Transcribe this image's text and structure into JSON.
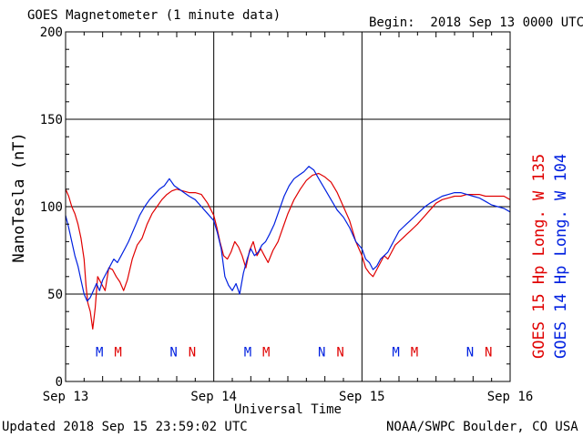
{
  "header": {
    "title": "GOES Magnetometer (1 minute data)",
    "begin": "Begin:  2018 Sep 13 0000 UTC"
  },
  "footer": {
    "updated": "Updated 2018 Sep 15 23:59:02 UTC",
    "credit": "NOAA/SWPC Boulder, CO USA"
  },
  "colors": {
    "goes15": "#e00000",
    "goes14": "#0020e0",
    "grid": "#000000"
  },
  "chart_data": {
    "type": "line",
    "title": "GOES Magnetometer (1 minute data)",
    "xlabel": "Universal Time",
    "ylabel": "NanoTesla (nT)",
    "ylim": [
      0,
      200
    ],
    "xlim": [
      0,
      72
    ],
    "x_unit": "hours since 2018 Sep 13 0000 UTC",
    "y_ticks": [
      0,
      50,
      100,
      150,
      200
    ],
    "x_ticks": [
      {
        "x": 0,
        "label": "Sep 13"
      },
      {
        "x": 24,
        "label": "Sep 14"
      },
      {
        "x": 48,
        "label": "Sep 15"
      },
      {
        "x": 72,
        "label": "Sep 16"
      }
    ],
    "grid": true,
    "legend_position": "right-vertical",
    "series": [
      {
        "name": "GOES 15 Hp  Long. W 135",
        "color": "#e00000",
        "x": [
          0,
          0.5,
          1,
          1.5,
          2,
          2.5,
          3,
          3.3,
          3.6,
          4,
          4.4,
          4.8,
          5.2,
          5.8,
          6.4,
          7,
          7.6,
          8.2,
          8.8,
          9.4,
          10,
          10.8,
          11.6,
          12.4,
          13.2,
          14,
          14.8,
          15.6,
          16.4,
          17.2,
          18,
          19,
          20,
          21,
          22,
          23,
          24,
          24.5,
          25,
          25.6,
          26.2,
          26.8,
          27.4,
          28,
          28.6,
          29.2,
          29.8,
          30.4,
          31,
          31.6,
          32.2,
          32.8,
          33.6,
          34.4,
          35.2,
          36,
          37,
          38,
          39,
          40,
          41,
          42,
          43,
          44,
          45,
          46,
          47,
          48,
          48.6,
          49.2,
          49.8,
          50.4,
          51,
          51.6,
          52.2,
          52.8,
          53.4,
          54,
          54.6,
          55.2,
          55.8,
          56.4,
          57,
          58,
          59,
          60,
          61,
          62,
          63,
          64,
          65,
          66,
          67,
          68,
          69,
          70,
          71,
          72
        ],
        "y": [
          110,
          106,
          100,
          96,
          90,
          82,
          70,
          55,
          45,
          40,
          30,
          42,
          60,
          56,
          52,
          65,
          64,
          60,
          57,
          52,
          58,
          70,
          78,
          82,
          90,
          96,
          100,
          104,
          107,
          109,
          110,
          109,
          108,
          108,
          107,
          102,
          95,
          88,
          80,
          72,
          70,
          74,
          80,
          77,
          72,
          65,
          75,
          80,
          72,
          76,
          72,
          68,
          75,
          80,
          88,
          96,
          104,
          110,
          115,
          118,
          119,
          117,
          114,
          108,
          100,
          92,
          80,
          72,
          65,
          62,
          60,
          64,
          68,
          72,
          70,
          74,
          78,
          80,
          82,
          84,
          86,
          88,
          90,
          94,
          98,
          102,
          104,
          105,
          106,
          106,
          107,
          107,
          107,
          106,
          106,
          106,
          106,
          104
        ]
      },
      {
        "name": "GOES 14 Hp  Long. W 104",
        "color": "#0020e0",
        "x": [
          0,
          0.5,
          1,
          1.5,
          2,
          2.5,
          3,
          3.5,
          4,
          4.5,
          5,
          5.5,
          6,
          6.6,
          7.2,
          7.8,
          8.4,
          9,
          9.6,
          10.2,
          10.8,
          11.4,
          12,
          12.8,
          13.6,
          14.4,
          15.2,
          16,
          16.8,
          17.6,
          18.4,
          19.2,
          20,
          21,
          22,
          23,
          24,
          24.6,
          25.2,
          25.8,
          26.4,
          27,
          27.6,
          28.2,
          28.8,
          29.4,
          30,
          30.6,
          31.2,
          31.8,
          32.4,
          33,
          33.8,
          34.6,
          35.4,
          36.2,
          37,
          37.8,
          38.6,
          39.4,
          40.2,
          41,
          42,
          43,
          44,
          45,
          46,
          47,
          48,
          48.6,
          49.2,
          49.8,
          50.4,
          51,
          51.6,
          52.2,
          52.8,
          53.4,
          54,
          54.6,
          55.2,
          55.8,
          56.4,
          57,
          57.6,
          58.2,
          59,
          60,
          61,
          62,
          63,
          64,
          65,
          66,
          67,
          68,
          69,
          70,
          71,
          72
        ],
        "y": [
          95,
          88,
          80,
          72,
          66,
          58,
          50,
          46,
          48,
          52,
          56,
          52,
          58,
          62,
          66,
          70,
          68,
          72,
          76,
          80,
          85,
          90,
          95,
          100,
          104,
          107,
          110,
          112,
          116,
          112,
          110,
          108,
          106,
          104,
          100,
          96,
          92,
          85,
          76,
          60,
          55,
          52,
          56,
          50,
          62,
          70,
          76,
          72,
          74,
          78,
          80,
          84,
          90,
          98,
          106,
          112,
          116,
          118,
          120,
          123,
          121,
          116,
          110,
          104,
          98,
          94,
          88,
          80,
          76,
          70,
          68,
          64,
          66,
          70,
          72,
          74,
          78,
          82,
          86,
          88,
          90,
          92,
          94,
          96,
          98,
          100,
          102,
          104,
          106,
          107,
          108,
          108,
          107,
          106,
          105,
          103,
          101,
          100,
          99,
          97
        ]
      }
    ],
    "annotations": [
      {
        "x": 5.5,
        "text": "M",
        "color": "#0020e0"
      },
      {
        "x": 8.5,
        "text": "M",
        "color": "#e00000"
      },
      {
        "x": 17.5,
        "text": "N",
        "color": "#0020e0"
      },
      {
        "x": 20.5,
        "text": "N",
        "color": "#e00000"
      },
      {
        "x": 29.5,
        "text": "M",
        "color": "#0020e0"
      },
      {
        "x": 32.5,
        "text": "M",
        "color": "#e00000"
      },
      {
        "x": 41.5,
        "text": "N",
        "color": "#0020e0"
      },
      {
        "x": 44.5,
        "text": "N",
        "color": "#e00000"
      },
      {
        "x": 53.5,
        "text": "M",
        "color": "#0020e0"
      },
      {
        "x": 56.5,
        "text": "M",
        "color": "#e00000"
      },
      {
        "x": 65.5,
        "text": "N",
        "color": "#0020e0"
      },
      {
        "x": 68.5,
        "text": "N",
        "color": "#e00000"
      }
    ],
    "annotation_y": 17
  }
}
